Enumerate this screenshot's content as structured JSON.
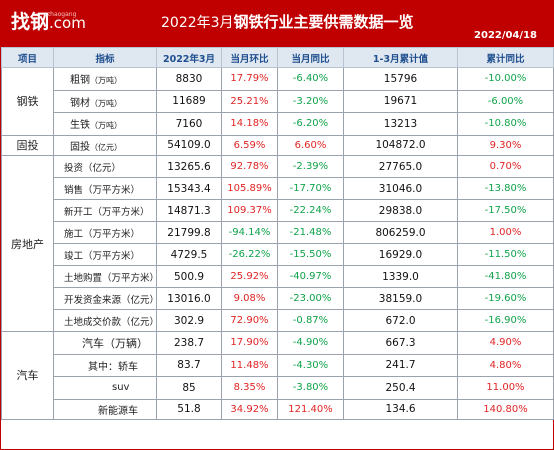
{
  "header": {
    "logo": "找钢",
    "logo_dotcom": ".com",
    "logo_pinyin": "zhaogang",
    "title_prefix": "2022年3月",
    "title_main": "钢铁行业主要供需数据一览",
    "date": "2022/04/18"
  },
  "columns": [
    "项目",
    "指标",
    "2022年3月",
    "当月环比",
    "当月同比",
    "1-3月累计值",
    "累计同比"
  ],
  "colors": {
    "header_bg": "#c00000",
    "up": "#e02424",
    "down": "#10a34a",
    "thead_bg": "#dfe7f0"
  },
  "groups": {
    "steel": "钢铁",
    "fai": "固投",
    "realestate": "房地产",
    "auto": "汽车"
  },
  "rows": [
    {
      "name": "粗钢",
      "unit": "（万吨）",
      "value": "8830",
      "mom": "17.79%",
      "yoy": "-6.40%",
      "ytd": "15796",
      "ytd_yoy": "-10.00%"
    },
    {
      "name": "钢材",
      "unit": "（万吨）",
      "value": "11689",
      "mom": "25.21%",
      "yoy": "-3.20%",
      "ytd": "19671",
      "ytd_yoy": "-6.00%"
    },
    {
      "name": "生铁",
      "unit": "（万吨）",
      "value": "7160",
      "mom": "14.18%",
      "yoy": "-6.20%",
      "ytd": "13213",
      "ytd_yoy": "-10.80%"
    },
    {
      "name": "固投",
      "unit": "（亿元）",
      "value": "54109.0",
      "mom": "6.59%",
      "yoy": "6.60%",
      "ytd": "104872.0",
      "ytd_yoy": "9.30%"
    },
    {
      "name": "投资（亿元）",
      "value": "13265.6",
      "mom": "92.78%",
      "yoy": "-2.39%",
      "ytd": "27765.0",
      "ytd_yoy": "0.70%"
    },
    {
      "name": "销售（万平方米）",
      "value": "15343.4",
      "mom": "105.89%",
      "yoy": "-17.70%",
      "ytd": "31046.0",
      "ytd_yoy": "-13.80%"
    },
    {
      "name": "新开工（万平方米）",
      "value": "14871.3",
      "mom": "109.37%",
      "yoy": "-22.24%",
      "ytd": "29838.0",
      "ytd_yoy": "-17.50%"
    },
    {
      "name": "施工（万平方米）",
      "value": "21799.8",
      "mom": "-94.14%",
      "yoy": "-21.48%",
      "ytd": "806259.0",
      "ytd_yoy": "1.00%"
    },
    {
      "name": "竣工（万平方米）",
      "value": "4729.5",
      "mom": "-26.22%",
      "yoy": "-15.50%",
      "ytd": "16929.0",
      "ytd_yoy": "-11.50%"
    },
    {
      "name": "土地购置（万平方米）",
      "value": "500.9",
      "mom": "25.92%",
      "yoy": "-40.97%",
      "ytd": "1339.0",
      "ytd_yoy": "-41.80%"
    },
    {
      "name": "开发资金来源（亿元）",
      "value": "13016.0",
      "mom": "9.08%",
      "yoy": "-23.00%",
      "ytd": "38159.0",
      "ytd_yoy": "-19.60%"
    },
    {
      "name": "土地成交价款（亿元）",
      "value": "302.9",
      "mom": "72.90%",
      "yoy": "-0.87%",
      "ytd": "672.0",
      "ytd_yoy": "-16.90%"
    },
    {
      "name": "汽车（万辆）",
      "value": "238.7",
      "mom": "17.90%",
      "yoy": "-4.90%",
      "ytd": "667.3",
      "ytd_yoy": "4.90%"
    },
    {
      "name": "其中：轿车",
      "value": "83.7",
      "mom": "11.48%",
      "yoy": "-4.30%",
      "ytd": "241.7",
      "ytd_yoy": "4.80%"
    },
    {
      "name": "suv",
      "value": "85",
      "mom": "8.35%",
      "yoy": "-3.80%",
      "ytd": "250.4",
      "ytd_yoy": "11.00%"
    },
    {
      "name": "新能源车",
      "value": "51.8",
      "mom": "34.92%",
      "yoy": "121.40%",
      "ytd": "134.6",
      "ytd_yoy": "140.80%"
    }
  ]
}
